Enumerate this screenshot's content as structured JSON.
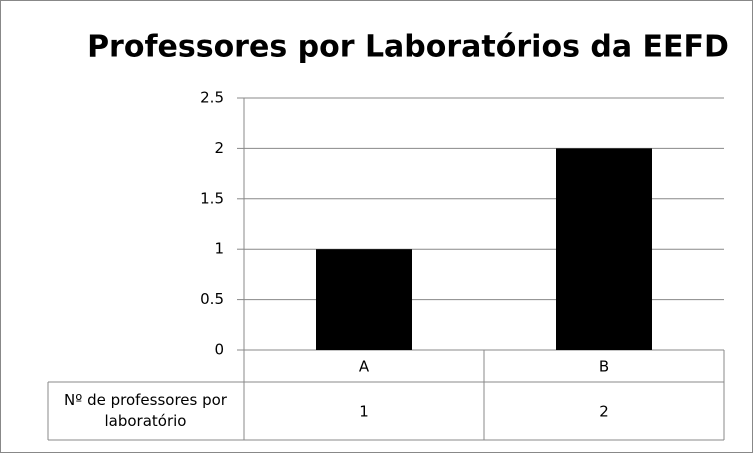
{
  "chart_data": {
    "type": "bar",
    "title": "Professores por Laboratórios da EEFD",
    "categories": [
      "A",
      "B"
    ],
    "series": [
      {
        "name": "Nº de professores por laboratório",
        "color": "#000000",
        "values": [
          1,
          2
        ]
      }
    ],
    "ylim": [
      0,
      2.5
    ],
    "yticks": [
      0,
      0.5,
      1,
      1.5,
      2,
      2.5
    ],
    "grid": true
  }
}
